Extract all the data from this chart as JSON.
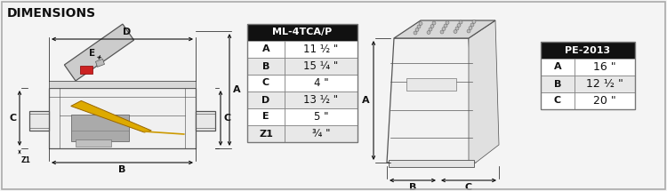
{
  "title": "DIMENSIONS",
  "bg_color": "#f4f4f4",
  "table1_header": "ML-4TCA/P",
  "table1_rows": [
    [
      "A",
      "11 ½ \""
    ],
    [
      "B",
      "15 ¼ \""
    ],
    [
      "C",
      "4 \""
    ],
    [
      "D",
      "13 ½ \""
    ],
    [
      "E",
      "5 \""
    ],
    [
      "Z1",
      "¾ \""
    ]
  ],
  "table2_header": "PE-2013",
  "table2_rows": [
    [
      "A",
      "16 \""
    ],
    [
      "B",
      "12 ½ \""
    ],
    [
      "C",
      "20 \""
    ]
  ],
  "header_bg": "#111111",
  "header_color": "#ffffff",
  "row_bg_odd": "#ffffff",
  "row_bg_even": "#e8e8e8",
  "border_color": "#777777",
  "text_color": "#111111",
  "diagram_color": "#555555",
  "arrow_color": "#111111",
  "outer_border_color": "#aaaaaa"
}
